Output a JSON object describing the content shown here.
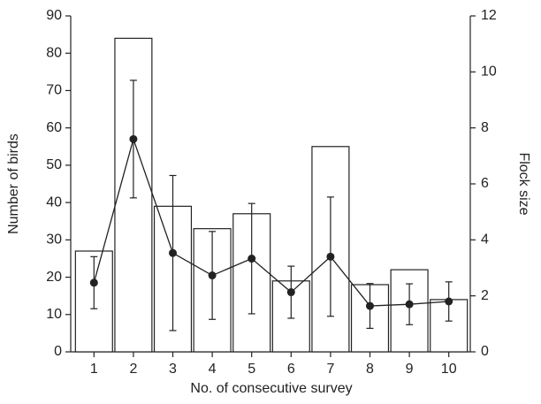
{
  "chart_data": {
    "type": "bar",
    "xlabel": "No. of consecutive survey",
    "ylabel": "Number of birds",
    "y2label": "Flock size",
    "categories": [
      "1",
      "2",
      "3",
      "4",
      "5",
      "6",
      "7",
      "8",
      "9",
      "10"
    ],
    "series": [
      {
        "type": "bar",
        "color": "#ffffff",
        "values": [
          27,
          84,
          39,
          33,
          37,
          19,
          55,
          18,
          22,
          14
        ]
      },
      {
        "type": "line",
        "axis": "y2",
        "color": "#222222",
        "values": [
          2.47,
          7.6,
          3.53,
          2.73,
          3.33,
          2.13,
          3.4,
          1.64,
          1.7,
          1.8
        ],
        "errors": [
          0.93,
          2.1,
          2.77,
          1.57,
          1.97,
          0.93,
          2.13,
          0.8,
          0.73,
          0.7
        ]
      }
    ],
    "ylim": [
      0,
      90
    ],
    "yticks": [
      0,
      10,
      20,
      30,
      40,
      50,
      60,
      70,
      80,
      90
    ],
    "y2lim": [
      0,
      12
    ],
    "y2ticks": [
      0,
      2,
      4,
      6,
      8,
      10,
      12
    ],
    "grid": false
  }
}
